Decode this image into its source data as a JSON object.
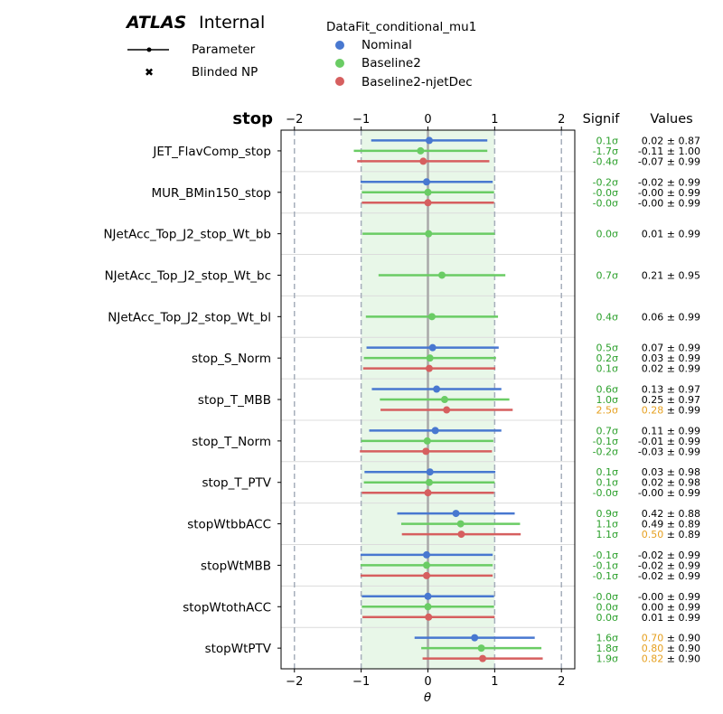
{
  "header": {
    "atlas": "ATLAS",
    "status": "Internal",
    "legend_style": {
      "parameter": "Parameter",
      "blinded": "Blinded NP"
    },
    "fit_legend": {
      "title": "DataFit_conditional_mu1",
      "entries": [
        "Nominal",
        "Baseline2",
        "Baseline2-njetDec"
      ]
    },
    "group_title": "stop",
    "signif_header": "Signif",
    "values_header": "Values"
  },
  "chart_data": {
    "type": "scatter",
    "subtype": "pull-plot",
    "xlabel": "θ",
    "xlim": [
      -2.2,
      2.2
    ],
    "xticks": [
      -2,
      -1,
      0,
      1,
      2
    ],
    "xtick_labels": [
      "−2",
      "−1",
      "0",
      "1",
      "2"
    ],
    "band_1sigma": [
      -1,
      1
    ],
    "dashed_lines": [
      -2,
      -1,
      1,
      2
    ],
    "series": [
      {
        "name": "Nominal",
        "color": "#4878d0"
      },
      {
        "name": "Baseline2",
        "color": "#6acc64"
      },
      {
        "name": "Baseline2-njetDec",
        "color": "#d65f5f"
      }
    ],
    "highlight_color": "#e6a020",
    "signif_color": "#2ca02c",
    "parameters": [
      {
        "name": "JET_FlavComp_stop",
        "entries": [
          {
            "series": 0,
            "value": 0.02,
            "err": 0.87,
            "signif": "0.1σ",
            "label": "0.02",
            "err_label": "0.87",
            "highlight": false
          },
          {
            "series": 1,
            "value": -0.11,
            "err": 1.0,
            "signif": "-1.7σ",
            "label": "-0.11",
            "err_label": "1.00",
            "highlight": false
          },
          {
            "series": 2,
            "value": -0.07,
            "err": 0.99,
            "signif": "-0.4σ",
            "label": "-0.07",
            "err_label": "0.99",
            "highlight": false
          }
        ]
      },
      {
        "name": "MUR_BMin150_stop",
        "entries": [
          {
            "series": 0,
            "value": -0.02,
            "err": 0.99,
            "signif": "-0.2σ",
            "label": "-0.02",
            "err_label": "0.99",
            "highlight": false
          },
          {
            "series": 1,
            "value": -0.0,
            "err": 0.99,
            "signif": "-0.0σ",
            "label": "-0.00",
            "err_label": "0.99",
            "highlight": false
          },
          {
            "series": 2,
            "value": -0.0,
            "err": 0.99,
            "signif": "-0.0σ",
            "label": "-0.00",
            "err_label": "0.99",
            "highlight": false
          }
        ]
      },
      {
        "name": "NJetAcc_Top_J2_stop_Wt_bb",
        "entries": [
          {
            "series": 1,
            "value": 0.01,
            "err": 0.99,
            "signif": "0.0σ",
            "label": "0.01",
            "err_label": "0.99",
            "highlight": false
          }
        ]
      },
      {
        "name": "NJetAcc_Top_J2_stop_Wt_bc",
        "entries": [
          {
            "series": 1,
            "value": 0.21,
            "err": 0.95,
            "signif": "0.7σ",
            "label": "0.21",
            "err_label": "0.95",
            "highlight": false
          }
        ]
      },
      {
        "name": "NJetAcc_Top_J2_stop_Wt_bl",
        "entries": [
          {
            "series": 1,
            "value": 0.06,
            "err": 0.99,
            "signif": "0.4σ",
            "label": "0.06",
            "err_label": "0.99",
            "highlight": false
          }
        ]
      },
      {
        "name": "stop_S_Norm",
        "entries": [
          {
            "series": 0,
            "value": 0.07,
            "err": 0.99,
            "signif": "0.5σ",
            "label": "0.07",
            "err_label": "0.99",
            "highlight": false
          },
          {
            "series": 1,
            "value": 0.03,
            "err": 0.99,
            "signif": "0.2σ",
            "label": "0.03",
            "err_label": "0.99",
            "highlight": false
          },
          {
            "series": 2,
            "value": 0.02,
            "err": 0.99,
            "signif": "0.1σ",
            "label": "0.02",
            "err_label": "0.99",
            "highlight": false
          }
        ]
      },
      {
        "name": "stop_T_MBB",
        "entries": [
          {
            "series": 0,
            "value": 0.13,
            "err": 0.97,
            "signif": "0.6σ",
            "label": "0.13",
            "err_label": "0.97",
            "highlight": false
          },
          {
            "series": 1,
            "value": 0.25,
            "err": 0.97,
            "signif": "1.0σ",
            "label": "0.25",
            "err_label": "0.97",
            "highlight": false
          },
          {
            "series": 2,
            "value": 0.28,
            "err": 0.99,
            "signif": "2.5σ",
            "label": "0.28",
            "err_label": "0.99",
            "highlight": true
          }
        ]
      },
      {
        "name": "stop_T_Norm",
        "entries": [
          {
            "series": 0,
            "value": 0.11,
            "err": 0.99,
            "signif": "0.7σ",
            "label": "0.11",
            "err_label": "0.99",
            "highlight": false
          },
          {
            "series": 1,
            "value": -0.01,
            "err": 0.99,
            "signif": "-0.1σ",
            "label": "-0.01",
            "err_label": "0.99",
            "highlight": false
          },
          {
            "series": 2,
            "value": -0.03,
            "err": 0.99,
            "signif": "-0.2σ",
            "label": "-0.03",
            "err_label": "0.99",
            "highlight": false
          }
        ]
      },
      {
        "name": "stop_T_PTV",
        "entries": [
          {
            "series": 0,
            "value": 0.03,
            "err": 0.98,
            "signif": "0.1σ",
            "label": "0.03",
            "err_label": "0.98",
            "highlight": false
          },
          {
            "series": 1,
            "value": 0.02,
            "err": 0.98,
            "signif": "0.1σ",
            "label": "0.02",
            "err_label": "0.98",
            "highlight": false
          },
          {
            "series": 2,
            "value": -0.0,
            "err": 0.99,
            "signif": "-0.0σ",
            "label": "-0.00",
            "err_label": "0.99",
            "highlight": false
          }
        ]
      },
      {
        "name": "stopWtbbACC",
        "entries": [
          {
            "series": 0,
            "value": 0.42,
            "err": 0.88,
            "signif": "0.9σ",
            "label": "0.42",
            "err_label": "0.88",
            "highlight": false
          },
          {
            "series": 1,
            "value": 0.49,
            "err": 0.89,
            "signif": "1.1σ",
            "label": "0.49",
            "err_label": "0.89",
            "highlight": false
          },
          {
            "series": 2,
            "value": 0.5,
            "err": 0.89,
            "signif": "1.1σ",
            "label": "0.50",
            "err_label": "0.89",
            "highlight": true
          }
        ]
      },
      {
        "name": "stopWtMBB",
        "entries": [
          {
            "series": 0,
            "value": -0.02,
            "err": 0.99,
            "signif": "-0.1σ",
            "label": "-0.02",
            "err_label": "0.99",
            "highlight": false
          },
          {
            "series": 1,
            "value": -0.02,
            "err": 0.99,
            "signif": "-0.1σ",
            "label": "-0.02",
            "err_label": "0.99",
            "highlight": false
          },
          {
            "series": 2,
            "value": -0.02,
            "err": 0.99,
            "signif": "-0.1σ",
            "label": "-0.02",
            "err_label": "0.99",
            "highlight": false
          }
        ]
      },
      {
        "name": "stopWtothACC",
        "entries": [
          {
            "series": 0,
            "value": -0.0,
            "err": 0.99,
            "signif": "-0.0σ",
            "label": "-0.00",
            "err_label": "0.99",
            "highlight": false
          },
          {
            "series": 1,
            "value": 0.0,
            "err": 0.99,
            "signif": "0.0σ",
            "label": "0.00",
            "err_label": "0.99",
            "highlight": false
          },
          {
            "series": 2,
            "value": 0.01,
            "err": 0.99,
            "signif": "0.0σ",
            "label": "0.01",
            "err_label": "0.99",
            "highlight": false
          }
        ]
      },
      {
        "name": "stopWtPTV",
        "entries": [
          {
            "series": 0,
            "value": 0.7,
            "err": 0.9,
            "signif": "1.6σ",
            "label": "0.70",
            "err_label": "0.90",
            "highlight": true
          },
          {
            "series": 1,
            "value": 0.8,
            "err": 0.9,
            "signif": "1.8σ",
            "label": "0.80",
            "err_label": "0.90",
            "highlight": true
          },
          {
            "series": 2,
            "value": 0.82,
            "err": 0.9,
            "signif": "1.9σ",
            "label": "0.82",
            "err_label": "0.90",
            "highlight": true
          }
        ]
      }
    ]
  }
}
